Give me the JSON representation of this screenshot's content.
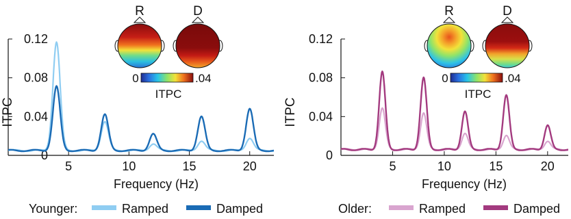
{
  "chart_data": [
    {
      "type": "line",
      "group_label": "Younger:",
      "xlabel": "Frequency (Hz)",
      "ylabel": "ITPC",
      "xlim": [
        0,
        22
      ],
      "ylim": [
        0,
        0.12
      ],
      "xticks": [
        5,
        10,
        15,
        20
      ],
      "xtick_labels": [
        "5",
        "10",
        "15",
        "20"
      ],
      "yticks": [
        0,
        0.04,
        0.08,
        0.12
      ],
      "ytick_labels": [
        "0",
        "0.04",
        "0.08",
        "0.12"
      ],
      "baseline": 0.005,
      "series": [
        {
          "name": "Ramped",
          "color": "#8fcdf2",
          "peaks": [
            {
              "x": 4,
              "y": 0.117
            },
            {
              "x": 8,
              "y": 0.035
            },
            {
              "x": 12,
              "y": 0.012
            },
            {
              "x": 16,
              "y": 0.015
            },
            {
              "x": 20,
              "y": 0.018
            }
          ]
        },
        {
          "name": "Damped",
          "color": "#1a6bb5",
          "peaks": [
            {
              "x": 4,
              "y": 0.071
            },
            {
              "x": 8,
              "y": 0.042
            },
            {
              "x": 12,
              "y": 0.022
            },
            {
              "x": 16,
              "y": 0.04
            },
            {
              "x": 20,
              "y": 0.048
            }
          ]
        }
      ],
      "topomaps": {
        "labels": [
          "R",
          "D"
        ],
        "colorbar_min": "0",
        "colorbar_max": ".04",
        "colorbar_label": "ITPC"
      }
    },
    {
      "type": "line",
      "group_label": "Older:",
      "xlabel": "Frequency (Hz)",
      "ylabel": "ITPC",
      "xlim": [
        0,
        22
      ],
      "ylim": [
        0,
        0.12
      ],
      "xticks": [
        5,
        10,
        15,
        20
      ],
      "xtick_labels": [
        "5",
        "10",
        "15",
        "20"
      ],
      "yticks": [
        0,
        0.04,
        0.08,
        0.12
      ],
      "ytick_labels": [
        "0",
        "0.04",
        "0.08",
        "0.12"
      ],
      "baseline": 0.006,
      "series": [
        {
          "name": "Ramped",
          "color": "#d9a5cf",
          "peaks": [
            {
              "x": 4,
              "y": 0.049
            },
            {
              "x": 8,
              "y": 0.044
            },
            {
              "x": 12,
              "y": 0.023
            },
            {
              "x": 16,
              "y": 0.021
            },
            {
              "x": 20,
              "y": 0.015
            }
          ]
        },
        {
          "name": "Damped",
          "color": "#a33a7f",
          "peaks": [
            {
              "x": 4,
              "y": 0.086
            },
            {
              "x": 8,
              "y": 0.08
            },
            {
              "x": 12,
              "y": 0.045
            },
            {
              "x": 16,
              "y": 0.062
            },
            {
              "x": 20,
              "y": 0.031
            }
          ]
        }
      ],
      "topomaps": {
        "labels": [
          "R",
          "D"
        ],
        "colorbar_min": "0",
        "colorbar_max": ".04",
        "colorbar_label": "ITPC"
      }
    }
  ]
}
